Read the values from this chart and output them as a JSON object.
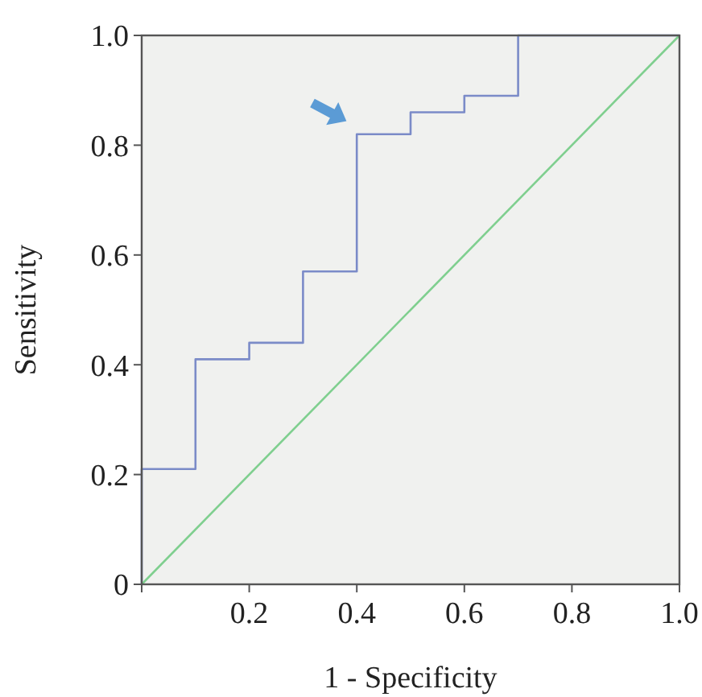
{
  "chart_data": {
    "type": "step",
    "xlabel": "1 - Specificity",
    "ylabel": "Sensitivity",
    "xlim": [
      0,
      1
    ],
    "ylim": [
      0,
      1
    ],
    "xticks": [
      {
        "value": 0,
        "label": null
      },
      0.2,
      0.4,
      0.6,
      0.8,
      {
        "value": 1,
        "label": "1.0"
      }
    ],
    "yticks": [
      0,
      0.2,
      0.4,
      0.6,
      0.8,
      {
        "value": 1,
        "label": "1.0"
      }
    ],
    "grid": false,
    "series": [
      {
        "type": "step",
        "color": "#7b8bc8",
        "x": [
          0,
          0,
          0.1,
          0.2,
          0.3,
          0.4,
          0.5,
          0.6,
          0.7,
          1.0
        ],
        "values": [
          0,
          0.21,
          0.41,
          0.44,
          0.57,
          0.82,
          0.86,
          0.89,
          1.0,
          1.0
        ]
      },
      {
        "type": "line",
        "color": "#7fcf8f",
        "x": [
          0,
          1
        ],
        "values": [
          0,
          1
        ]
      }
    ]
  }
}
